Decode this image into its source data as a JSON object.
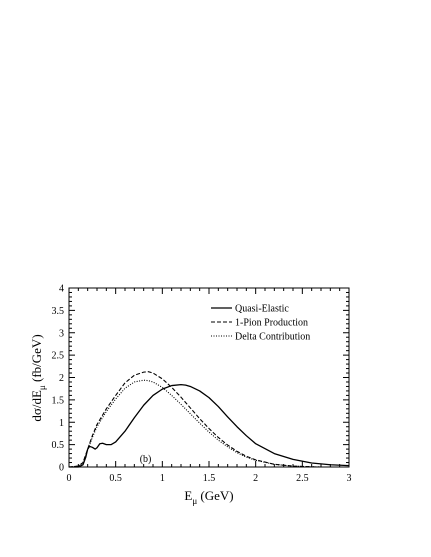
{
  "chart_data": {
    "type": "line",
    "title": "",
    "xlabel": "E",
    "xlabel_sub": "μ",
    "xlabel_unit": " (GeV)",
    "ylabel": "dσ/dE",
    "ylabel_sub": "μ",
    "ylabel_unit": "  (fb/GeV)",
    "xlim": [
      0,
      3
    ],
    "ylim": [
      0,
      4
    ],
    "xticks": [
      "0",
      "0.5",
      "1",
      "1.5",
      "2",
      "2.5",
      "3"
    ],
    "yticks": [
      "0",
      "0.5",
      "1",
      "1.5",
      "2",
      "2.5",
      "3",
      "3.5",
      "4"
    ],
    "annotation": "(b)",
    "annotation_at": {
      "x": 0.82,
      "y": 0.2
    },
    "grid": false,
    "legend_position": "top-right",
    "series": [
      {
        "name": "Quasi-Elastic",
        "style": "solid",
        "color": "#000000",
        "x": [
          0.0,
          0.1,
          0.15,
          0.18,
          0.2,
          0.22,
          0.25,
          0.28,
          0.3,
          0.33,
          0.36,
          0.4,
          0.45,
          0.5,
          0.6,
          0.7,
          0.8,
          0.9,
          1.0,
          1.1,
          1.2,
          1.25,
          1.3,
          1.4,
          1.5,
          1.6,
          1.7,
          1.8,
          1.9,
          2.0,
          2.2,
          2.4,
          2.6,
          2.8,
          3.0
        ],
        "y": [
          0.0,
          0.0,
          0.05,
          0.22,
          0.4,
          0.46,
          0.44,
          0.4,
          0.43,
          0.52,
          0.53,
          0.5,
          0.5,
          0.56,
          0.8,
          1.1,
          1.38,
          1.6,
          1.74,
          1.82,
          1.84,
          1.83,
          1.8,
          1.7,
          1.55,
          1.35,
          1.12,
          0.9,
          0.7,
          0.52,
          0.3,
          0.17,
          0.09,
          0.05,
          0.03
        ]
      },
      {
        "name": "1-Pion Production",
        "style": "dashed",
        "color": "#000000",
        "x": [
          0.0,
          0.1,
          0.15,
          0.2,
          0.25,
          0.3,
          0.4,
          0.5,
          0.6,
          0.7,
          0.8,
          0.85,
          0.9,
          1.0,
          1.1,
          1.2,
          1.3,
          1.4,
          1.5,
          1.6,
          1.7,
          1.8,
          1.9,
          2.0,
          2.2,
          2.4,
          2.6,
          2.7
        ],
        "y": [
          0.0,
          0.02,
          0.1,
          0.4,
          0.7,
          0.95,
          1.3,
          1.6,
          1.88,
          2.05,
          2.12,
          2.13,
          2.1,
          1.97,
          1.78,
          1.56,
          1.32,
          1.08,
          0.86,
          0.66,
          0.49,
          0.35,
          0.24,
          0.16,
          0.06,
          0.02,
          0.005,
          0.0
        ]
      },
      {
        "name": "Delta Contribution",
        "style": "dotted",
        "color": "#000000",
        "x": [
          0.0,
          0.1,
          0.15,
          0.2,
          0.25,
          0.3,
          0.4,
          0.5,
          0.6,
          0.7,
          0.8,
          0.85,
          0.9,
          1.0,
          1.1,
          1.2,
          1.3,
          1.4,
          1.5,
          1.6,
          1.7,
          1.8,
          1.9,
          2.0,
          2.2,
          2.4,
          2.6,
          2.7
        ],
        "y": [
          0.0,
          0.02,
          0.1,
          0.38,
          0.66,
          0.9,
          1.24,
          1.52,
          1.76,
          1.9,
          1.94,
          1.93,
          1.9,
          1.78,
          1.6,
          1.4,
          1.19,
          0.98,
          0.78,
          0.6,
          0.45,
          0.32,
          0.22,
          0.15,
          0.06,
          0.02,
          0.005,
          0.0
        ]
      }
    ]
  }
}
